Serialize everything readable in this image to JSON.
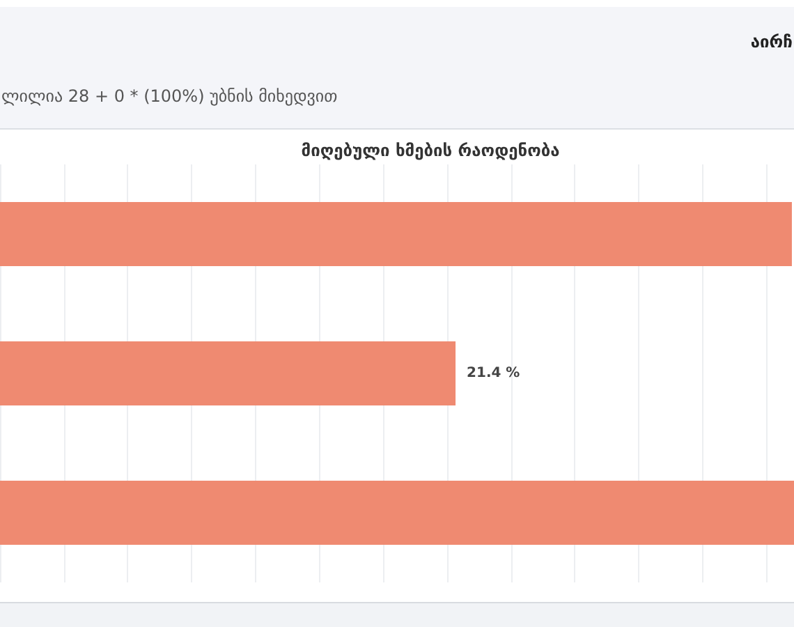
{
  "chart_data": {
    "type": "bar",
    "orientation": "horizontal",
    "title": "მიღებული ხმების რაოდენობა",
    "annotations": [
      "აირჩ",
      "ლილია 28 + 0 * (100%) უბნის მიხედვით"
    ],
    "categories": [
      null,
      null,
      null
    ],
    "values": [
      37.2,
      21.4,
      37.3
    ],
    "value_labels": [
      null,
      "21.4 %",
      null
    ],
    "color": "#ef8a71",
    "grid": "x",
    "tick_labels": false
  }
}
